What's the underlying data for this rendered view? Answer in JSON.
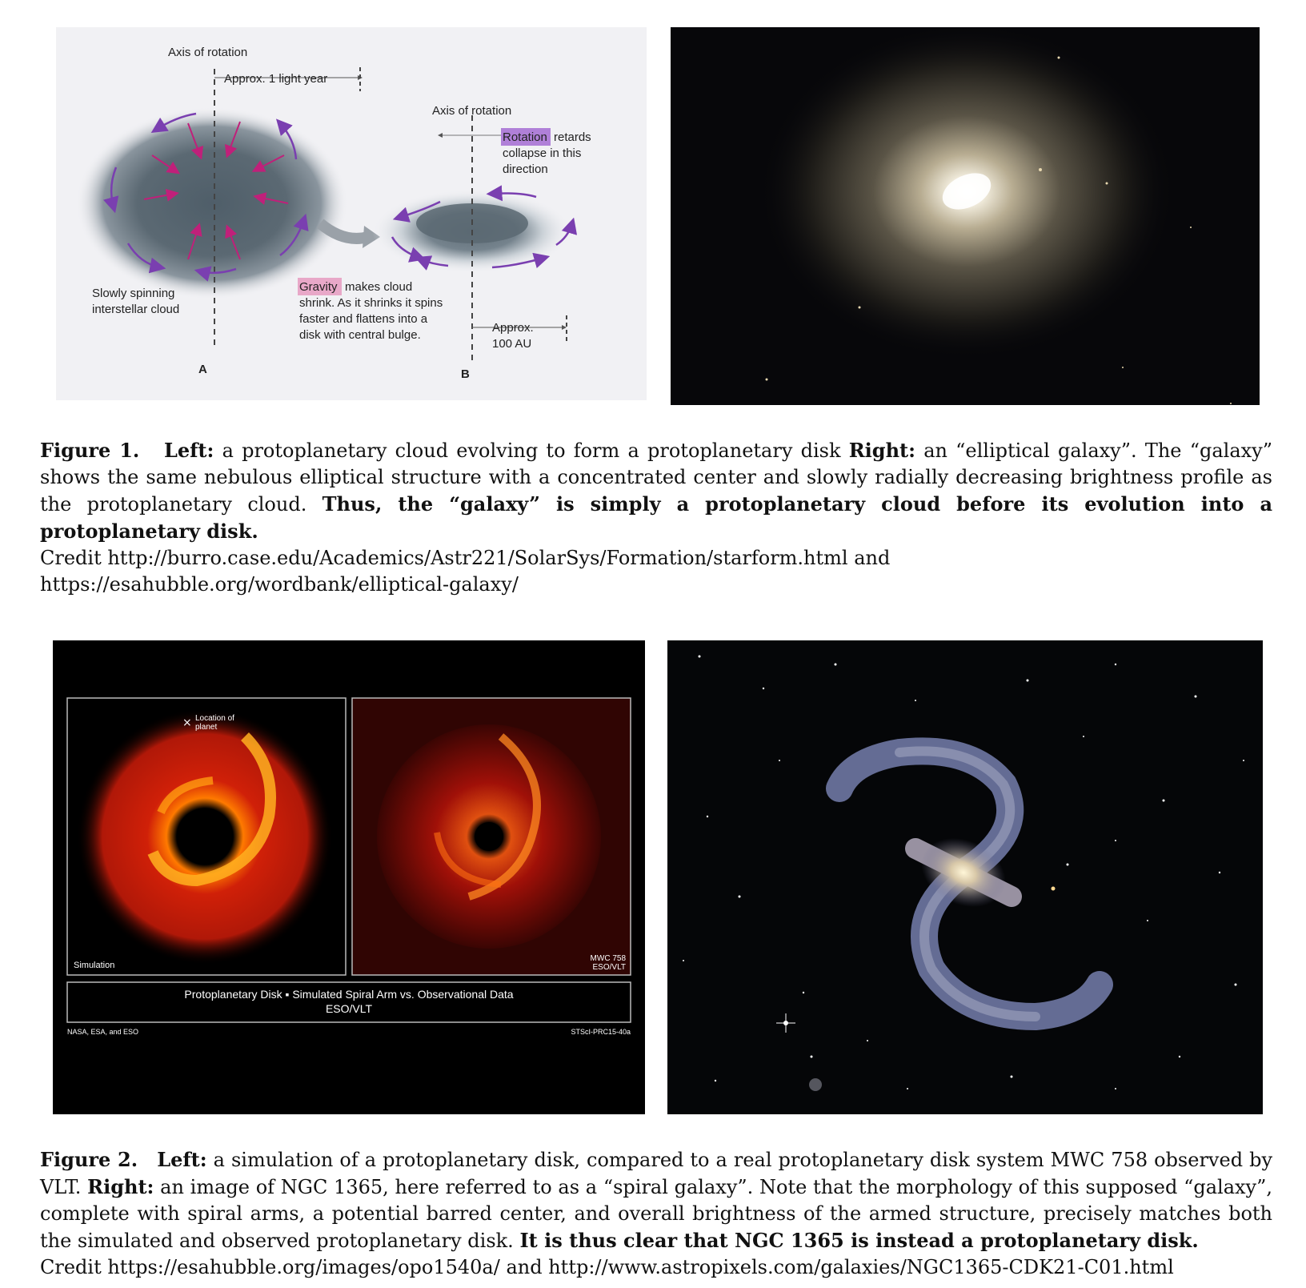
{
  "figure1": {
    "left": {
      "axis_label_a": "Axis of rotation",
      "light_year": "Approx. 1 light year",
      "axis_label_b": "Axis of rotation",
      "rotation_hl": "Rotation",
      "rotation_rest1": "retards",
      "rotation_rest2": "collapse in this",
      "rotation_rest3": "direction",
      "cloud_label1": "Slowly spinning",
      "cloud_label2": "interstellar cloud",
      "gravity_hl": "Gravity",
      "gravity_rest1": "makes cloud",
      "gravity_rest2": "shrink. As it shrinks it spins",
      "gravity_rest3": "faster and flattens into a",
      "gravity_rest4": "disk with central bulge.",
      "au1": "Approx.",
      "au2": "100 AU",
      "label_a": "A",
      "label_b": "B",
      "colors": {
        "arrow": "#7a3fb0",
        "inward_arrow": "#c0207a",
        "highlight": "#b080d8"
      }
    },
    "caption": {
      "label": "Figure 1.",
      "left_label": "Left:",
      "text1": "a protoplanetary cloud evolving to form a protoplanetary disk",
      "right_label": "Right:",
      "text2": "an “elliptical galaxy”. The “galaxy” shows the same nebulous elliptical structure with a concentrated center and slowly radially decreasing brightness profile as the protoplanetary cloud.",
      "bold_text": "Thus, the “galaxy” is simply a protoplanetary cloud before its evolution into a protoplanetary disk.",
      "credit1": "Credit http://burro.case.edu/Academics/Astr221/SolarSys/Formation/starform.html and",
      "credit2": "https://esahubble.org/wordbank/elliptical-galaxy/"
    }
  },
  "figure2": {
    "left": {
      "planet_label1": "Location of",
      "planet_label2": "planet",
      "simulation": "Simulation",
      "mwc1": "MWC 758",
      "mwc2": "ESO/VLT",
      "title1": "Protoplanetary Disk ▪ Simulated Spiral Arm vs. Observational Data",
      "title2": "ESO/VLT",
      "credit_left": "NASA, ESA, and ESO",
      "credit_right": "STScI-PRC15-40a"
    },
    "caption": {
      "label": "Figure 2.",
      "left_label": "Left:",
      "text1": "a simulation of a protoplanetary disk, compared to a real protoplanetary disk system MWC 758 observed by VLT.",
      "right_label": "Right:",
      "text2": "an image of NGC 1365, here referred to as a “spiral galaxy”. Note that the morphology of this supposed “galaxy”, complete with spiral arms, a potential barred center, and overall brightness of the armed structure, precisely matches both the simulated and observed protoplanetary disk.",
      "bold_text": "It is thus clear that NGC 1365 is instead a protoplanetary disk.",
      "credit": "Credit https://esahubble.org/images/opo1540a/ and http://www.astropixels.com/galaxies/NGC1365-CDK21-C01.html"
    }
  }
}
